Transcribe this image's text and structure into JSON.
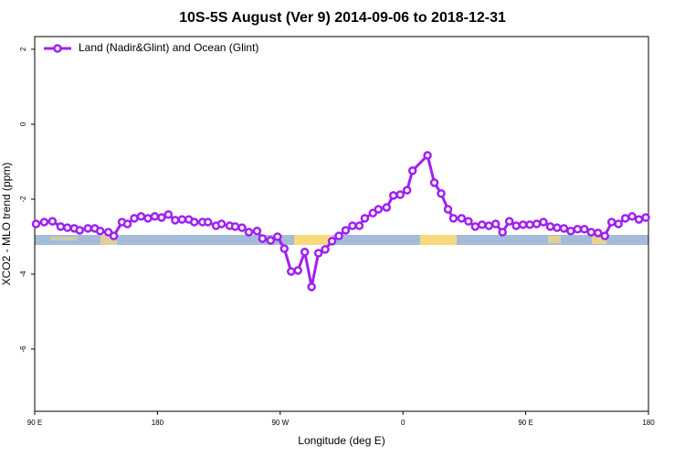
{
  "chart_data": {
    "type": "line",
    "title": "10S-5S August (Ver 9)   2014-09-06 to 2018-12-31",
    "xlabel": "Longitude (deg E)",
    "ylabel": "XCO2 - MLO trend (ppm)",
    "xlim": [
      90,
      540
    ],
    "xticks": [
      {
        "value": 90,
        "label": "90 E"
      },
      {
        "value": 180,
        "label": "180"
      },
      {
        "value": 270,
        "label": "90 W"
      },
      {
        "value": 360,
        "label": "0"
      },
      {
        "value": 450,
        "label": "90 E"
      },
      {
        "value": 540,
        "label": "180"
      }
    ],
    "ylim": [
      -7.66,
      2.34
    ],
    "yticks": [
      2,
      0,
      -2,
      -4,
      -6
    ],
    "legend": "top-left",
    "series": [
      {
        "name": "Land (Nadir&Glint) and Ocean (Glint)",
        "color": "#a020f0",
        "x": [
          91,
          97,
          103,
          109,
          114,
          119,
          123,
          129,
          134,
          138,
          144,
          148,
          154,
          158,
          163,
          168,
          173,
          178,
          183,
          188,
          193,
          198,
          203,
          207,
          213,
          217,
          223,
          227,
          233,
          237,
          242,
          247,
          253,
          257,
          263,
          268,
          273,
          278,
          283,
          288,
          293,
          298,
          303,
          308,
          313,
          318,
          323,
          328,
          332,
          338,
          342,
          348,
          353,
          358,
          363,
          367,
          378,
          383,
          388,
          393,
          397,
          403,
          408,
          413,
          418,
          423,
          428,
          433,
          438,
          443,
          448,
          453,
          458,
          463,
          468,
          473,
          478,
          483,
          488,
          493,
          498,
          503,
          508,
          513,
          518,
          523,
          528,
          533,
          538
        ],
        "values": [
          -2.66,
          -2.61,
          -2.59,
          -2.73,
          -2.76,
          -2.78,
          -2.83,
          -2.78,
          -2.78,
          -2.85,
          -2.88,
          -2.98,
          -2.61,
          -2.66,
          -2.51,
          -2.46,
          -2.51,
          -2.46,
          -2.49,
          -2.41,
          -2.56,
          -2.54,
          -2.54,
          -2.61,
          -2.61,
          -2.61,
          -2.71,
          -2.66,
          -2.71,
          -2.73,
          -2.76,
          -2.88,
          -2.85,
          -3.05,
          -3.1,
          -3.0,
          -3.32,
          -3.93,
          -3.9,
          -3.41,
          -4.34,
          -3.44,
          -3.34,
          -3.12,
          -2.98,
          -2.83,
          -2.71,
          -2.71,
          -2.51,
          -2.37,
          -2.27,
          -2.22,
          -1.9,
          -1.88,
          -1.76,
          -1.24,
          -0.83,
          -1.56,
          -1.85,
          -2.27,
          -2.51,
          -2.51,
          -2.59,
          -2.73,
          -2.68,
          -2.71,
          -2.66,
          -2.88,
          -2.59,
          -2.71,
          -2.68,
          -2.68,
          -2.66,
          -2.61,
          -2.73,
          -2.76,
          -2.78,
          -2.85,
          -2.8,
          -2.8,
          -2.88,
          -2.9,
          -2.98,
          -2.61,
          -2.66,
          -2.51,
          -2.46,
          -2.54,
          -2.49
        ]
      }
    ]
  }
}
